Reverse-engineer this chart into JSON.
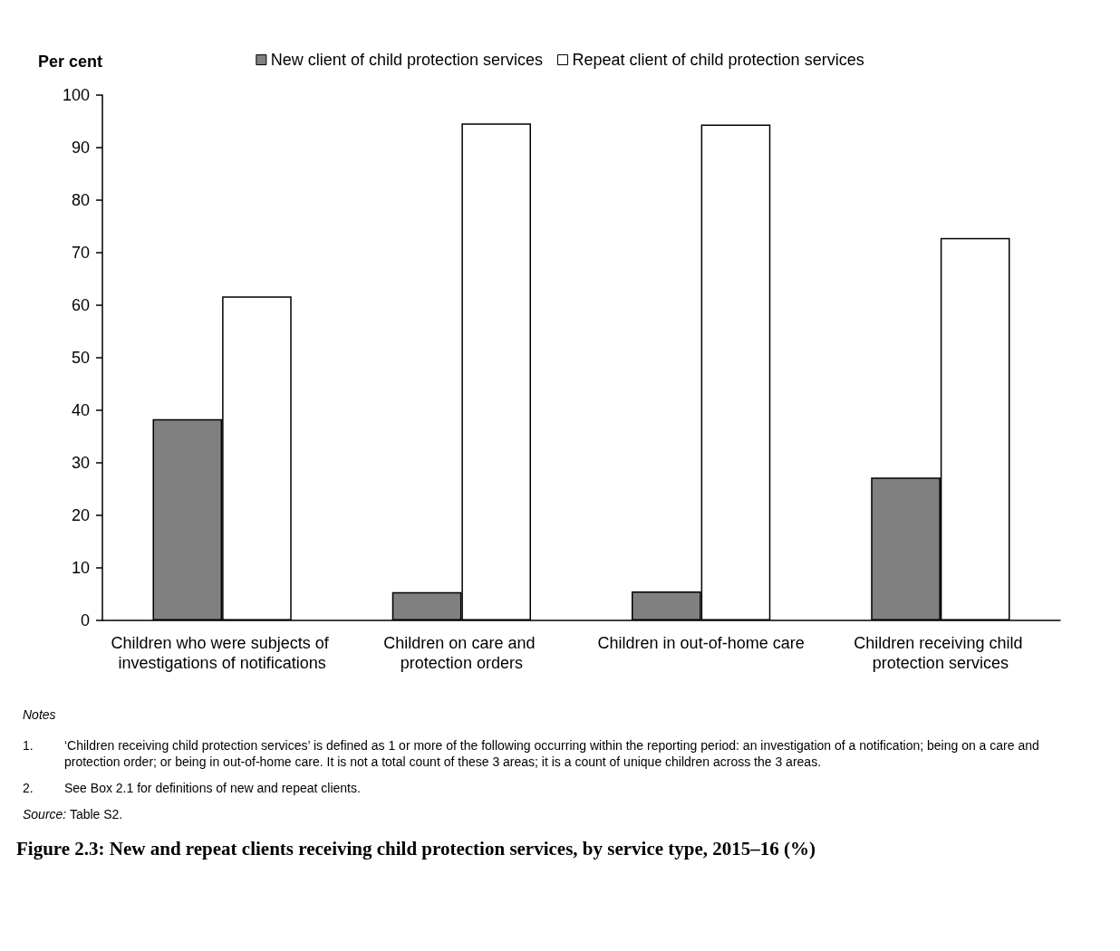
{
  "chart_data": {
    "type": "bar",
    "title": "Figure 2.3: New and repeat clients receiving child protection services, by service type, 2015–16 (%)",
    "ylabel": "Per cent",
    "categories": [
      "Children who were subjects of investigations of notifications",
      "Children on care and protection orders",
      "Children in out-of-home care",
      "Children receiving child protection services"
    ],
    "series": [
      {
        "name": "New client of child protection services",
        "color": "#808080",
        "values": [
          38.3,
          5.4,
          5.5,
          27.2
        ]
      },
      {
        "name": "Repeat client of child protection services",
        "color": "#ffffff",
        "values": [
          61.7,
          94.6,
          94.4,
          72.8
        ]
      }
    ],
    "ylim": [
      0,
      100
    ],
    "yticks": [
      0,
      10,
      20,
      30,
      40,
      50,
      60,
      70,
      80,
      90,
      100
    ],
    "grid": false,
    "legend": "top",
    "annotations": [
      "Notes",
      "1. ‘Children receiving child protection services’ is defined as 1 or more of the following occurring within the reporting period: an investigation of a notification; being on a care and protection order; or being in out-of-home care. It is not a total count of these 3 areas; it is a count of unique children across the 3 areas.",
      "2. See Box 2.1 for definitions of new and repeat clients.",
      "Source: Table S2."
    ]
  }
}
